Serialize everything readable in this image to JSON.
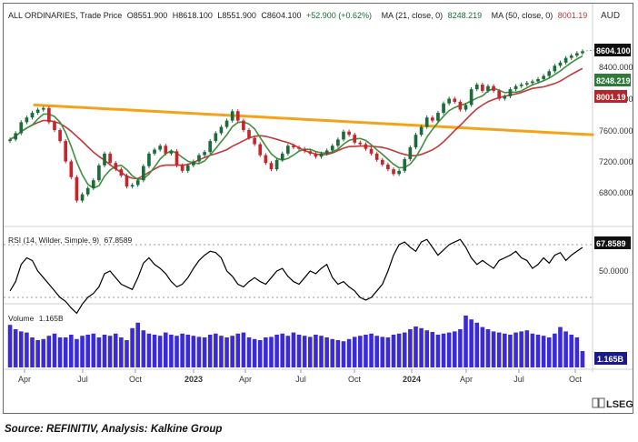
{
  "header": {
    "instrument": "ALL ORDINARIES, Trade Price",
    "open": "O8551.900",
    "high": "H8618.100",
    "low": "L8551.900",
    "close": "C8604.100",
    "change": "+52.900 (+0.62%)",
    "ma21_label": "MA (21, close, 0)",
    "ma21_value": "8248.219",
    "ma50_label": "MA (50, close, 0)",
    "ma50_value": "8001.19",
    "currency": "AUD"
  },
  "price_axis": {
    "ticks": [
      "8400.000",
      "8000.000",
      "7600.000",
      "7200.000",
      "6800.000"
    ],
    "last_price_tag": "8604.100",
    "ma21_tag": "8248.219",
    "ma50_tag": "8001.19"
  },
  "rsi": {
    "label": "RSI (14, Wilder, Simple, 9)",
    "value": "67.8589",
    "tick": "50.0000",
    "tag": "67.8589"
  },
  "volume": {
    "label": "Volume",
    "value": "1.165B",
    "tag": "1.165B"
  },
  "time_axis": {
    "labels": [
      "Apr",
      "Jul",
      "Oct",
      "2023",
      "Apr",
      "Jul",
      "Oct",
      "2024",
      "Apr",
      "Jul",
      "Oct"
    ],
    "bold": [
      false,
      false,
      false,
      true,
      false,
      false,
      false,
      true,
      false,
      false,
      false
    ]
  },
  "branding": {
    "logo": "LSEG"
  },
  "source_text": "Source: REFINITIV, Analysis: Kalkine Group",
  "colors": {
    "up": "#1d6b3a",
    "down": "#c2272d",
    "ma21": "#3f8f3f",
    "ma50": "#c03a3a",
    "trendline": "#f5a21b",
    "volume": "#3a2bd6",
    "rsi_line": "#000000",
    "tag_dark": "#111111"
  },
  "chart_data": [
    {
      "type": "candlestick",
      "title": "ALL ORDINARIES, Trade Price",
      "currency": "AUD",
      "ylim": [
        6500,
        8750
      ],
      "ohlc_last": {
        "open": 8551.9,
        "high": 8618.1,
        "low": 8551.9,
        "close": 8604.1,
        "change": 52.9,
        "change_pct": 0.62
      },
      "closes": [
        7480,
        7560,
        7700,
        7760,
        7820,
        7860,
        7880,
        7700,
        7600,
        7460,
        7200,
        7000,
        6700,
        6780,
        6860,
        6960,
        7150,
        7300,
        7180,
        7100,
        7020,
        6880,
        6900,
        6960,
        7140,
        7300,
        7350,
        7400,
        7300,
        7330,
        7150,
        7080,
        7150,
        7200,
        7280,
        7320,
        7460,
        7560,
        7640,
        7720,
        7840,
        7720,
        7600,
        7500,
        7420,
        7280,
        7180,
        7100,
        7220,
        7300,
        7400,
        7380,
        7360,
        7330,
        7300,
        7260,
        7300,
        7340,
        7400,
        7480,
        7580,
        7540,
        7440,
        7420,
        7360,
        7300,
        7220,
        7160,
        7100,
        7040,
        7080,
        7230,
        7380,
        7540,
        7640,
        7760,
        7720,
        7820,
        7940,
        8000,
        7960,
        7860,
        7920,
        8120,
        8180,
        8100,
        8160,
        8100,
        8000,
        8030,
        8120,
        8160,
        8180,
        8200,
        8220,
        8250,
        8290,
        8350,
        8420,
        8460,
        8520,
        8550,
        8580,
        8604
      ],
      "series": [
        {
          "name": "MA (21, close, 0)",
          "last": 8248.219
        },
        {
          "name": "MA (50, close, 0)",
          "last": 8001.19
        }
      ],
      "trendline": {
        "start": 7920,
        "end": 7540
      }
    },
    {
      "type": "line",
      "title": "RSI (14, Wilder, Simple, 9)",
      "last": 67.8589,
      "ylim": [
        20,
        80
      ],
      "reference_levels": [
        70,
        50,
        30
      ],
      "values": [
        35,
        42,
        55,
        60,
        58,
        50,
        45,
        40,
        35,
        30,
        27,
        22,
        18,
        25,
        30,
        33,
        38,
        48,
        50,
        45,
        40,
        38,
        36,
        45,
        56,
        60,
        55,
        52,
        48,
        42,
        38,
        40,
        45,
        52,
        58,
        62,
        65,
        64,
        60,
        50,
        46,
        40,
        38,
        42,
        45,
        42,
        40,
        45,
        50,
        52,
        46,
        42,
        40,
        45,
        50,
        48,
        52,
        55,
        45,
        40,
        42,
        38,
        35,
        30,
        28,
        30,
        35,
        40,
        50,
        62,
        70,
        72,
        68,
        65,
        72,
        74,
        68,
        62,
        66,
        70,
        72,
        74,
        68,
        60,
        55,
        58,
        55,
        52,
        58,
        60,
        62,
        65,
        60,
        58,
        52,
        55,
        60,
        56,
        62,
        64,
        58,
        62,
        65,
        67.86
      ],
      "ticks": [
        50
      ]
    },
    {
      "type": "bar",
      "title": "Volume",
      "last": "1.165B",
      "values": [
        0.78,
        0.7,
        0.66,
        0.64,
        0.55,
        0.5,
        0.52,
        0.58,
        0.62,
        0.55,
        0.55,
        0.6,
        0.52,
        0.58,
        0.6,
        0.62,
        0.55,
        0.6,
        0.58,
        0.62,
        0.55,
        0.5,
        0.72,
        0.82,
        0.68,
        0.62,
        0.6,
        0.58,
        0.64,
        0.6,
        0.58,
        0.62,
        0.6,
        0.58,
        0.56,
        0.55,
        0.6,
        0.62,
        0.58,
        0.55,
        0.58,
        0.62,
        0.64,
        0.55,
        0.52,
        0.5,
        0.55,
        0.56,
        0.6,
        0.62,
        0.58,
        0.64,
        0.6,
        0.58,
        0.56,
        0.6,
        0.58,
        0.55,
        0.52,
        0.5,
        0.48,
        0.52,
        0.56,
        0.58,
        0.6,
        0.62,
        0.58,
        0.56,
        0.55,
        0.6,
        0.62,
        0.64,
        0.7,
        0.75,
        0.72,
        0.68,
        0.65,
        0.6,
        0.62,
        0.64,
        0.66,
        0.7,
        0.95,
        0.88,
        0.82,
        0.74,
        0.7,
        0.66,
        0.64,
        0.62,
        0.6,
        0.64,
        0.66,
        0.68,
        0.62,
        0.6,
        0.58,
        0.55,
        0.62,
        0.74,
        0.66,
        0.6,
        0.55,
        0.3
      ]
    }
  ]
}
